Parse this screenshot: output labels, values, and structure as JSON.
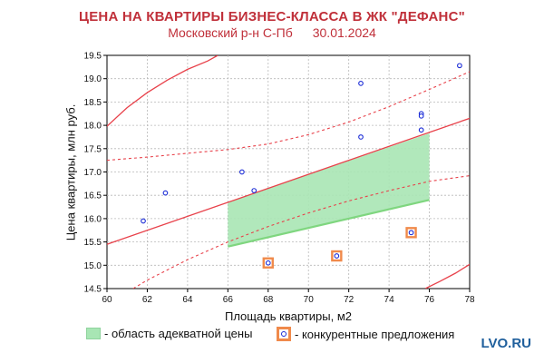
{
  "header": {
    "title": "ЦЕНА НА КВАРТИРЫ БИЗНЕС-КЛАССА  В  ЖК \"ДЕФАНС\"",
    "subtitle_place": "Московский р-н С-Пб",
    "subtitle_date": "30.01.2024"
  },
  "legend": {
    "adequate_label": "- область адекватной цены",
    "competitor_label": "- конкурентные предложения"
  },
  "watermark": "LVO.RU",
  "colors": {
    "regression": "#e8414a",
    "points": "#1a2bd6",
    "band_fill": "#a8e6b4",
    "competitor_box": "#f08a4b"
  },
  "chart_data": {
    "type": "scatter",
    "xlabel": "Площадь квартиры, м2",
    "ylabel": "Цена квартиры, млн руб.",
    "xlim": [
      60,
      78
    ],
    "ylim": [
      14.5,
      19.5
    ],
    "x_ticks": [
      60,
      62,
      64,
      66,
      68,
      70,
      72,
      74,
      76,
      78
    ],
    "y_ticks": [
      14.5,
      15.0,
      15.5,
      16.0,
      16.5,
      17.0,
      17.5,
      18.0,
      18.5,
      19.0,
      19.5
    ],
    "grid": true,
    "series": [
      {
        "points": [
          {
            "x": 61.8,
            "y": 15.95
          },
          {
            "x": 62.9,
            "y": 16.55
          },
          {
            "x": 66.7,
            "y": 17.0
          },
          {
            "x": 67.3,
            "y": 16.6
          },
          {
            "x": 72.6,
            "y": 18.9
          },
          {
            "x": 72.6,
            "y": 17.75
          },
          {
            "x": 75.6,
            "y": 18.25
          },
          {
            "x": 75.6,
            "y": 18.2
          },
          {
            "x": 75.6,
            "y": 17.9
          },
          {
            "x": 77.5,
            "y": 19.28
          }
        ]
      },
      {
        "points": [
          {
            "x": 68.0,
            "y": 15.05
          },
          {
            "x": 71.4,
            "y": 15.2
          },
          {
            "x": 75.1,
            "y": 15.7
          }
        ]
      }
    ],
    "regression_line": [
      {
        "x": 60,
        "y": 15.45
      },
      {
        "x": 78,
        "y": 18.15
      }
    ],
    "upper_prediction": [
      {
        "x": 60,
        "y": 17.98
      },
      {
        "x": 61,
        "y": 18.38
      },
      {
        "x": 62,
        "y": 18.7
      },
      {
        "x": 63,
        "y": 18.97
      },
      {
        "x": 64,
        "y": 19.2
      },
      {
        "x": 65,
        "y": 19.38
      },
      {
        "x": 65.5,
        "y": 19.5
      }
    ],
    "lower_prediction": [
      {
        "x": 75.8,
        "y": 14.5
      },
      {
        "x": 76.5,
        "y": 14.65
      },
      {
        "x": 77.3,
        "y": 14.83
      },
      {
        "x": 78,
        "y": 15.02
      }
    ],
    "upper_confidence": [
      {
        "x": 60,
        "y": 17.25
      },
      {
        "x": 62,
        "y": 17.32
      },
      {
        "x": 64,
        "y": 17.4
      },
      {
        "x": 66,
        "y": 17.48
      },
      {
        "x": 68,
        "y": 17.6
      },
      {
        "x": 70,
        "y": 17.8
      },
      {
        "x": 72,
        "y": 18.07
      },
      {
        "x": 74,
        "y": 18.4
      },
      {
        "x": 76,
        "y": 18.77
      },
      {
        "x": 78,
        "y": 19.15
      }
    ],
    "lower_confidence": [
      {
        "x": 61.3,
        "y": 14.5
      },
      {
        "x": 62,
        "y": 14.68
      },
      {
        "x": 64,
        "y": 15.12
      },
      {
        "x": 66,
        "y": 15.5
      },
      {
        "x": 68,
        "y": 15.83
      },
      {
        "x": 70,
        "y": 16.12
      },
      {
        "x": 72,
        "y": 16.38
      },
      {
        "x": 74,
        "y": 16.6
      },
      {
        "x": 76,
        "y": 16.8
      },
      {
        "x": 78,
        "y": 16.92
      }
    ],
    "adequate_band": [
      {
        "x": 66,
        "y": 16.35
      },
      {
        "x": 76,
        "y": 17.83
      },
      {
        "x": 76,
        "y": 16.4
      },
      {
        "x": 66,
        "y": 15.4
      }
    ]
  }
}
